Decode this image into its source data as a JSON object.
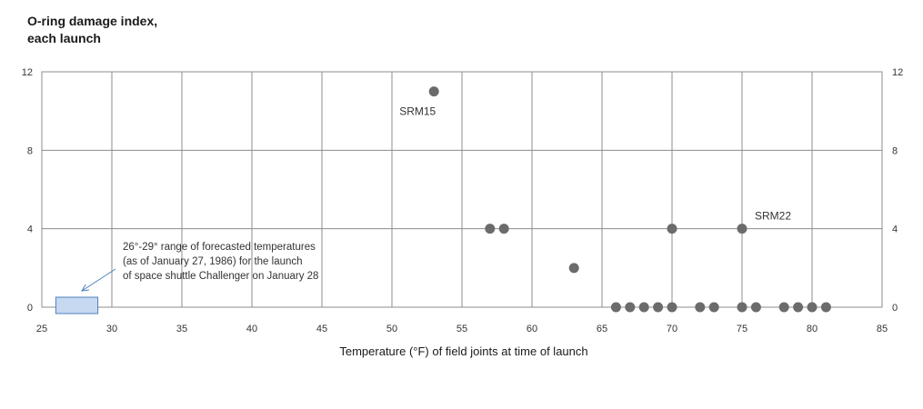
{
  "chart_data": {
    "type": "scatter",
    "title_lines": [
      "O-ring damage index,",
      "each launch"
    ],
    "xlabel": "Temperature (°F) of field joints at time of launch",
    "xlim": [
      25,
      85
    ],
    "ylim": [
      0,
      12
    ],
    "x_ticks": [
      25,
      30,
      35,
      40,
      45,
      50,
      55,
      60,
      65,
      70,
      75,
      80,
      85
    ],
    "y_ticks": [
      0,
      4,
      8,
      12
    ],
    "grid": true,
    "right_axis_labels": true,
    "marker_color": "#6b6b6b",
    "points": [
      {
        "x": 53,
        "y": 11
      },
      {
        "x": 57,
        "y": 4
      },
      {
        "x": 58,
        "y": 4
      },
      {
        "x": 63,
        "y": 2
      },
      {
        "x": 66,
        "y": 0
      },
      {
        "x": 67,
        "y": 0
      },
      {
        "x": 68,
        "y": 0
      },
      {
        "x": 69,
        "y": 0
      },
      {
        "x": 70,
        "y": 0
      },
      {
        "x": 70,
        "y": 4
      },
      {
        "x": 72,
        "y": 0
      },
      {
        "x": 73,
        "y": 0
      },
      {
        "x": 75,
        "y": 0
      },
      {
        "x": 75,
        "y": 4
      },
      {
        "x": 76,
        "y": 0
      },
      {
        "x": 78,
        "y": 0
      },
      {
        "x": 79,
        "y": 0
      },
      {
        "x": 80,
        "y": 0
      },
      {
        "x": 81,
        "y": 0
      }
    ],
    "point_labels": [
      {
        "text": "SRM15",
        "x": 53,
        "y": 11
      },
      {
        "text": "SRM22",
        "x": 75,
        "y": 4
      }
    ],
    "forecast_range": {
      "x": [
        26,
        29
      ],
      "color": "#c6d9f1",
      "border_color": "#4f81bd",
      "note_lines": [
        "26°-29° range of forecasted temperatures",
        "(as of January 27, 1986) for the launch",
        "of space shuttle Challenger on January 28"
      ]
    }
  }
}
